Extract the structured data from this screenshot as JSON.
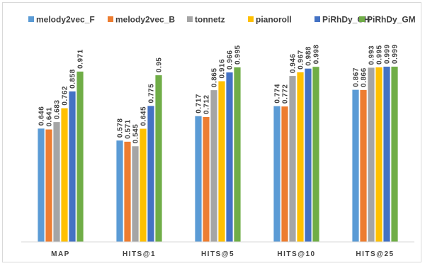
{
  "chart_data": {
    "type": "bar",
    "title": "",
    "xlabel": "",
    "ylabel": "",
    "ylim": [
      0,
      1.1
    ],
    "grid": false,
    "legend_position": "top",
    "categories": [
      "MAP",
      "HITS@1",
      "HITS@5",
      "HITS@10",
      "HITS@25"
    ],
    "series": [
      {
        "name": "melody2vec_F",
        "color": "#5b9bd5",
        "values": [
          0.646,
          0.578,
          0.717,
          0.774,
          0.867
        ],
        "labels": [
          "0.646",
          "0.578",
          "0.717",
          "0.774",
          "0.867"
        ]
      },
      {
        "name": "melody2vec_B",
        "color": "#ed7d31",
        "values": [
          0.641,
          0.571,
          0.712,
          0.772,
          0.866
        ],
        "labels": [
          "0.641",
          "0.571",
          "0.712",
          "0.772",
          "0.866"
        ]
      },
      {
        "name": "tonnetz",
        "color": "#a5a5a5",
        "values": [
          0.683,
          0.545,
          0.865,
          0.946,
          0.993
        ],
        "labels": [
          "0.683",
          "0.545",
          "0.865",
          "0.946",
          "0.993"
        ]
      },
      {
        "name": "pianoroll",
        "color": "#ffc000",
        "values": [
          0.762,
          0.645,
          0.916,
          0.967,
          0.995
        ],
        "labels": [
          "0.762",
          "0.645",
          "0.916",
          "0.967",
          "0.995"
        ]
      },
      {
        "name": "PiRhDy_GH",
        "color": "#4472c4",
        "values": [
          0.858,
          0.775,
          0.966,
          0.988,
          0.999
        ],
        "labels": [
          "0.858",
          "0.775",
          "0.966",
          "0.988",
          "0.999"
        ]
      },
      {
        "name": "PiRhDy_GM",
        "color": "#70ad47",
        "values": [
          0.971,
          0.95,
          0.995,
          0.998,
          0.999
        ],
        "labels": [
          "0.971",
          "0.95",
          "0.995",
          "0.998",
          "0.999"
        ]
      }
    ]
  }
}
